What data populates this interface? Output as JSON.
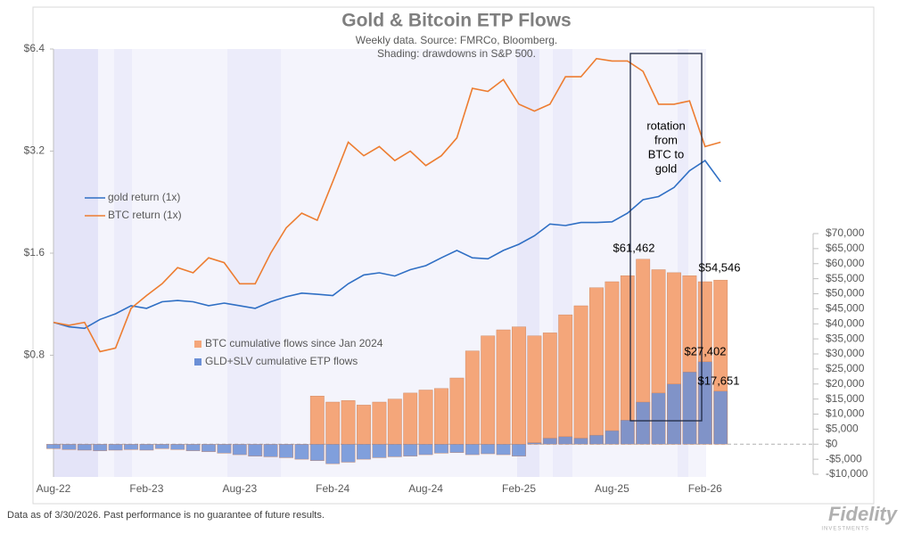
{
  "chart_data": {
    "type": "combo",
    "title": "Gold & Bitcoin ETP Flows",
    "subtitle": [
      "Weekly data.  Source: FMRCo, Bloomberg.",
      "Shading: drawdowns in S&P 500."
    ],
    "categories": [
      "Aug-22",
      null,
      null,
      null,
      null,
      null,
      "Feb-23",
      null,
      null,
      null,
      null,
      null,
      "Aug-23",
      null,
      null,
      null,
      null,
      null,
      "Feb-24",
      null,
      null,
      null,
      null,
      null,
      "Aug-24",
      null,
      null,
      null,
      null,
      null,
      "Feb-25",
      null,
      null,
      null,
      null,
      null,
      "Aug-25",
      null,
      null,
      null,
      null,
      null,
      "Feb-26",
      null
    ],
    "series": [
      {
        "name": "BTC cumulative flows since Jan 2024",
        "kind": "bar",
        "axis": "y2",
        "color": "#f4a67a",
        "values": [
          null,
          null,
          null,
          null,
          null,
          null,
          null,
          null,
          null,
          null,
          null,
          null,
          null,
          null,
          null,
          null,
          null,
          16000,
          14000,
          14500,
          13000,
          14000,
          15000,
          17000,
          18000,
          18500,
          22000,
          31000,
          36000,
          38000,
          39000,
          36000,
          37000,
          43000,
          46000,
          52000,
          54000,
          56000,
          61462,
          58000,
          57000,
          56000,
          54000,
          54546
        ]
      },
      {
        "name": "GLD+SLV cumulative ETP flows",
        "kind": "bar",
        "axis": "y2",
        "color": "#6b8fd6",
        "values": [
          -1500,
          -1800,
          -2000,
          -2200,
          -2000,
          -1800,
          -2000,
          -1500,
          -1800,
          -2200,
          -2500,
          -3000,
          -3500,
          -4000,
          -4200,
          -4500,
          -5000,
          -5500,
          -6500,
          -6000,
          -5000,
          -4500,
          -4200,
          -4000,
          -3500,
          -3000,
          -2800,
          -3500,
          -3200,
          -3500,
          -4000,
          500,
          2000,
          2500,
          2000,
          3000,
          4500,
          8000,
          14000,
          17000,
          20000,
          24000,
          27402,
          17651
        ]
      },
      {
        "name": "gold return (1x)",
        "kind": "line",
        "axis": "y",
        "color": "#2f6fc4",
        "values": [
          1.0,
          0.97,
          0.96,
          1.02,
          1.06,
          1.12,
          1.1,
          1.15,
          1.16,
          1.15,
          1.12,
          1.14,
          1.12,
          1.1,
          1.15,
          1.19,
          1.22,
          1.21,
          1.2,
          1.3,
          1.38,
          1.4,
          1.37,
          1.43,
          1.47,
          1.55,
          1.63,
          1.55,
          1.54,
          1.63,
          1.7,
          1.8,
          1.95,
          1.93,
          1.97,
          1.97,
          1.98,
          2.1,
          2.3,
          2.35,
          2.5,
          2.8,
          3.0,
          2.6
        ]
      },
      {
        "name": "BTC return (1x)",
        "kind": "line",
        "axis": "y",
        "color": "#ed7d31",
        "values": [
          1.0,
          0.98,
          1.0,
          0.82,
          0.84,
          1.1,
          1.2,
          1.3,
          1.45,
          1.4,
          1.55,
          1.5,
          1.3,
          1.3,
          1.6,
          1.9,
          2.1,
          2.0,
          2.6,
          3.4,
          3.1,
          3.3,
          3.0,
          3.2,
          2.9,
          3.1,
          3.5,
          4.9,
          4.8,
          5.2,
          4.4,
          4.2,
          4.4,
          5.3,
          5.3,
          6.0,
          5.9,
          5.9,
          5.5,
          4.4,
          4.4,
          4.5,
          3.3,
          3.4
        ]
      }
    ],
    "ylim": [
      0.35,
      6.4
    ],
    "log_y": true,
    "yticks": [
      {
        "value": 0.8,
        "label": "$0.8"
      },
      {
        "value": 1.6,
        "label": "$1.6"
      },
      {
        "value": 3.2,
        "label": "$3.2"
      },
      {
        "value": 6.4,
        "label": "$6.4"
      }
    ],
    "y2lim": [
      -10000,
      70000
    ],
    "y2ticks": [
      {
        "value": -10000,
        "label": "-$10,000"
      },
      {
        "value": -5000,
        "label": "-$5,000"
      },
      {
        "value": 0,
        "label": "$0"
      },
      {
        "value": 5000,
        "label": "$5,000"
      },
      {
        "value": 10000,
        "label": "$10,000"
      },
      {
        "value": 15000,
        "label": "$15,000"
      },
      {
        "value": 20000,
        "label": "$20,000"
      },
      {
        "value": 25000,
        "label": "$25,000"
      },
      {
        "value": 30000,
        "label": "$30,000"
      },
      {
        "value": 35000,
        "label": "$35,000"
      },
      {
        "value": 40000,
        "label": "$40,000"
      },
      {
        "value": 45000,
        "label": "$45,000"
      },
      {
        "value": 50000,
        "label": "$50,000"
      },
      {
        "value": 55000,
        "label": "$55,000"
      },
      {
        "value": 60000,
        "label": "$60,000"
      },
      {
        "value": 65000,
        "label": "$65,000"
      },
      {
        "value": 70000,
        "label": "$70,000"
      }
    ],
    "annotations": [
      "$61,462",
      "$54,546",
      "$27,402",
      "$17,651",
      "rotation",
      "from",
      "BTC to",
      "gold"
    ]
  },
  "footer": {
    "note": "Data as of 3/30/2026. Past performance is no guarantee of future results."
  },
  "logo": {
    "name": "Fidelity",
    "sub": "INVESTMENTS"
  }
}
